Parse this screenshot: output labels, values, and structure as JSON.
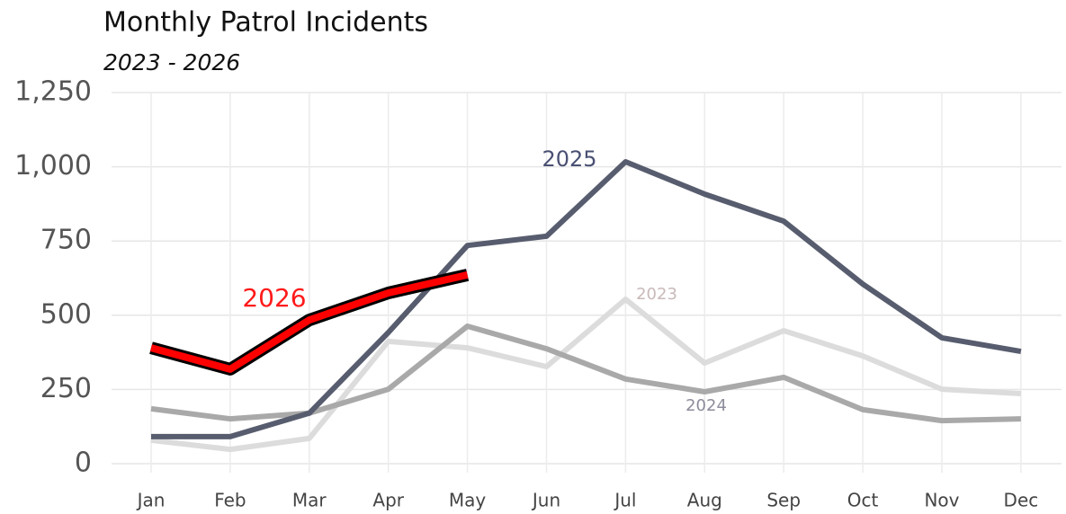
{
  "chart_data": {
    "type": "line",
    "title": "Monthly Patrol Incidents",
    "subtitle": "2023 - 2026",
    "categories": [
      "Jan",
      "Feb",
      "Mar",
      "Apr",
      "May",
      "Jun",
      "Jul",
      "Aug",
      "Sep",
      "Oct",
      "Nov",
      "Dec"
    ],
    "series": [
      {
        "name": "2023",
        "color": "#dcdcdc",
        "label_color": "#c9b9b9",
        "values": [
          79,
          48,
          85,
          412,
          390,
          327,
          554,
          339,
          448,
          363,
          251,
          236
        ]
      },
      {
        "name": "2024",
        "color": "#a9a9a9",
        "label_color": "#8c8c9c",
        "values": [
          185,
          151,
          170,
          251,
          463,
          387,
          285,
          242,
          291,
          182,
          145,
          151
        ]
      },
      {
        "name": "2025",
        "color": "#575d6e",
        "label_color": "#4a5073",
        "values": [
          91,
          91,
          170,
          442,
          735,
          766,
          1017,
          908,
          817,
          605,
          424,
          378
        ]
      },
      {
        "name": "2026",
        "color": "#ff0000",
        "label_color": "#ff1a1a",
        "outline": "#000000",
        "values": [
          390,
          318,
          484,
          575,
          636,
          null,
          null,
          null,
          null,
          null,
          null,
          null
        ]
      }
    ],
    "ylim": [
      0,
      1250
    ],
    "yticks": [
      0,
      250,
      500,
      750,
      {
        "value": 1000,
        "label": "1,000"
      },
      {
        "value": 1250,
        "label": "1,250"
      }
    ],
    "grid": true
  }
}
